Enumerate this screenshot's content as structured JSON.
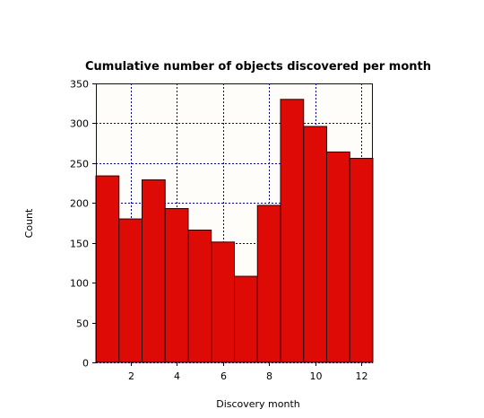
{
  "chart_data": {
    "type": "bar",
    "title": "Cumulative number of objects discovered per month",
    "xlabel": "Discovery month",
    "ylabel": "Count",
    "categories": [
      "1",
      "2",
      "3",
      "4",
      "5",
      "6",
      "7",
      "8",
      "9",
      "10",
      "11",
      "12"
    ],
    "values": [
      234,
      180,
      229,
      193,
      166,
      151,
      108,
      197,
      330,
      296,
      264,
      256
    ],
    "xlim": [
      0.5,
      12.5
    ],
    "ylim": [
      0,
      350
    ],
    "xticks": [
      2,
      4,
      6,
      8,
      10,
      12
    ],
    "yticks": [
      0,
      50,
      100,
      150,
      200,
      250,
      300,
      350
    ],
    "grid": true,
    "legend": "none",
    "colors": {
      "bar_fill": "#dd0a06",
      "bar_edge": "#330000",
      "plot_background": "#fffdfa",
      "grid": "#0000aa",
      "frame": "#00008b"
    }
  }
}
